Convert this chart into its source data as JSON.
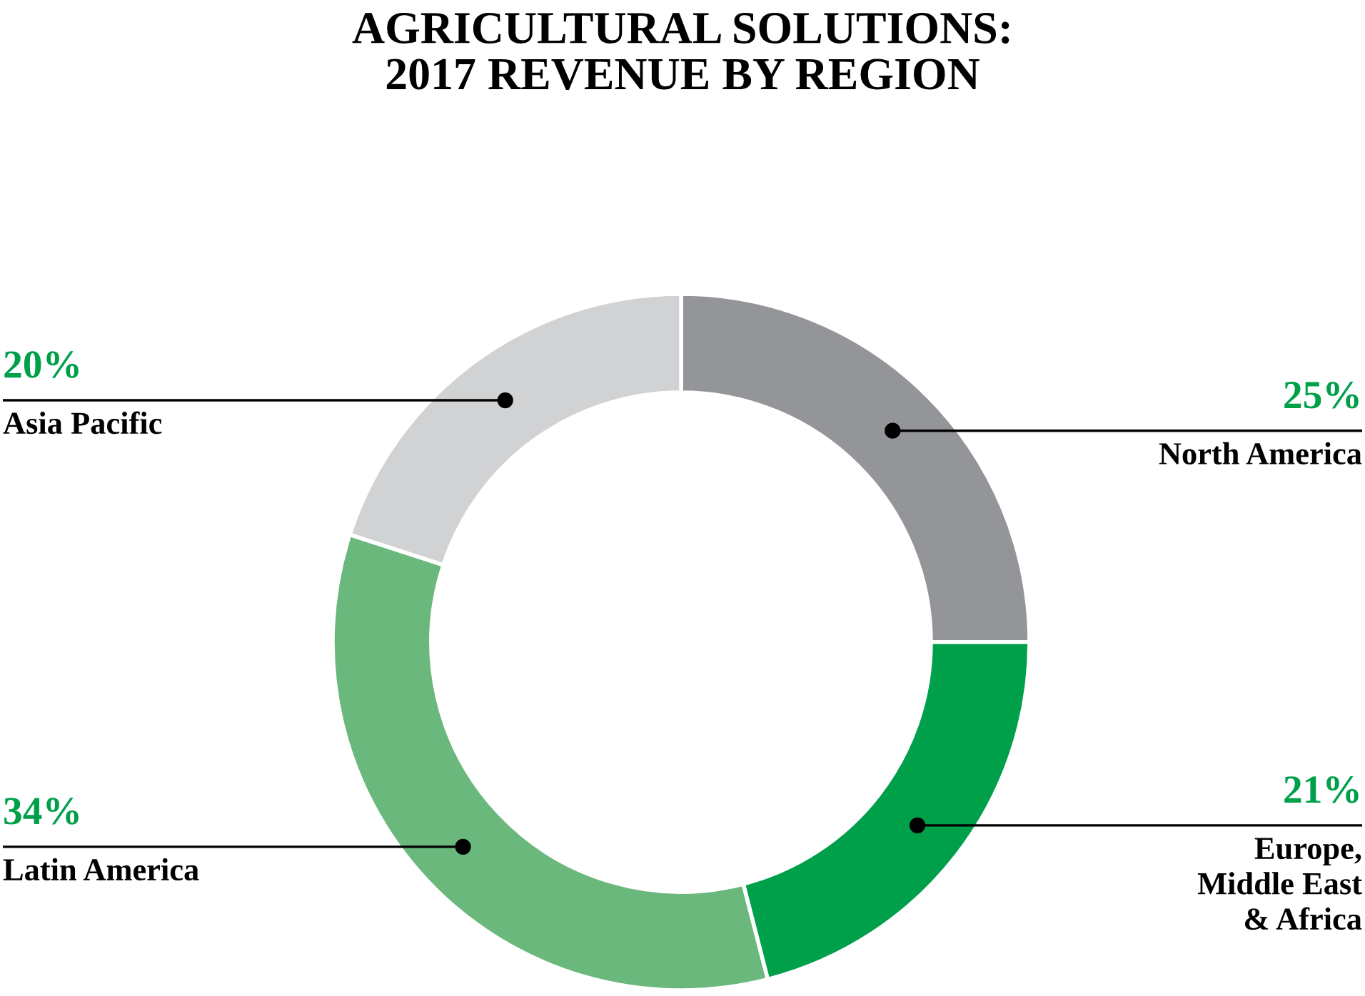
{
  "chart_data": {
    "type": "donut",
    "title": "AGRICULTURAL SOLUTIONS:\n2017 REVENUE BY REGION",
    "categories": [
      "North America",
      "Europe,\nMiddle East\n& Africa",
      "Latin America",
      "Asia Pacific"
    ],
    "values": [
      25,
      21,
      34,
      20
    ],
    "colors": [
      "#939598",
      "#00a04b",
      "#6ab87c",
      "#d1d2d4"
    ],
    "value_labels": [
      "25%",
      "21%",
      "34%",
      "20%"
    ],
    "legend": false
  }
}
